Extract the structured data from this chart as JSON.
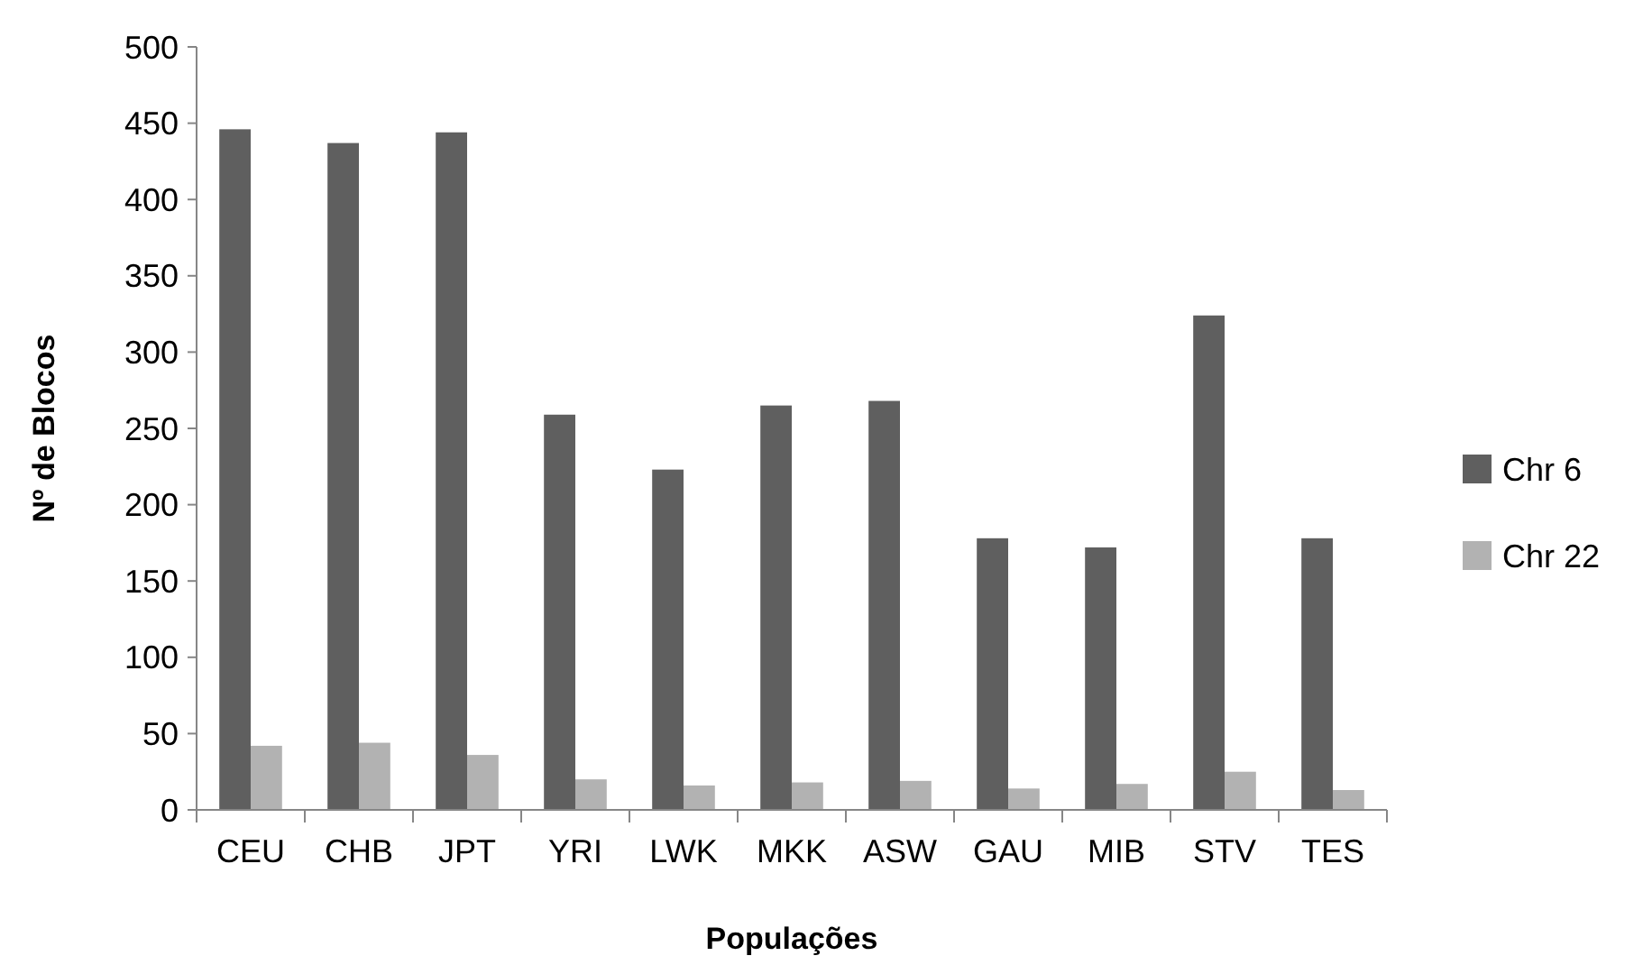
{
  "chart_data": {
    "type": "bar",
    "xlabel": "Populações",
    "ylabel": "Nº de Blocos",
    "categories": [
      "CEU",
      "CHB",
      "JPT",
      "YRI",
      "LWK",
      "MKK",
      "ASW",
      "GAU",
      "MIB",
      "STV",
      "TES"
    ],
    "series": [
      {
        "name": "Chr 6",
        "color": "#5f5f5f",
        "values": [
          446,
          437,
          444,
          259,
          223,
          265,
          268,
          178,
          172,
          324,
          178
        ]
      },
      {
        "name": "Chr 22",
        "color": "#b2b2b2",
        "values": [
          42,
          44,
          36,
          20,
          16,
          18,
          19,
          14,
          17,
          25,
          13
        ]
      }
    ],
    "ylim": [
      0,
      500
    ],
    "yticks": [
      0,
      50,
      100,
      150,
      200,
      250,
      300,
      350,
      400,
      450,
      500
    ],
    "grid": false,
    "legend": "right"
  }
}
